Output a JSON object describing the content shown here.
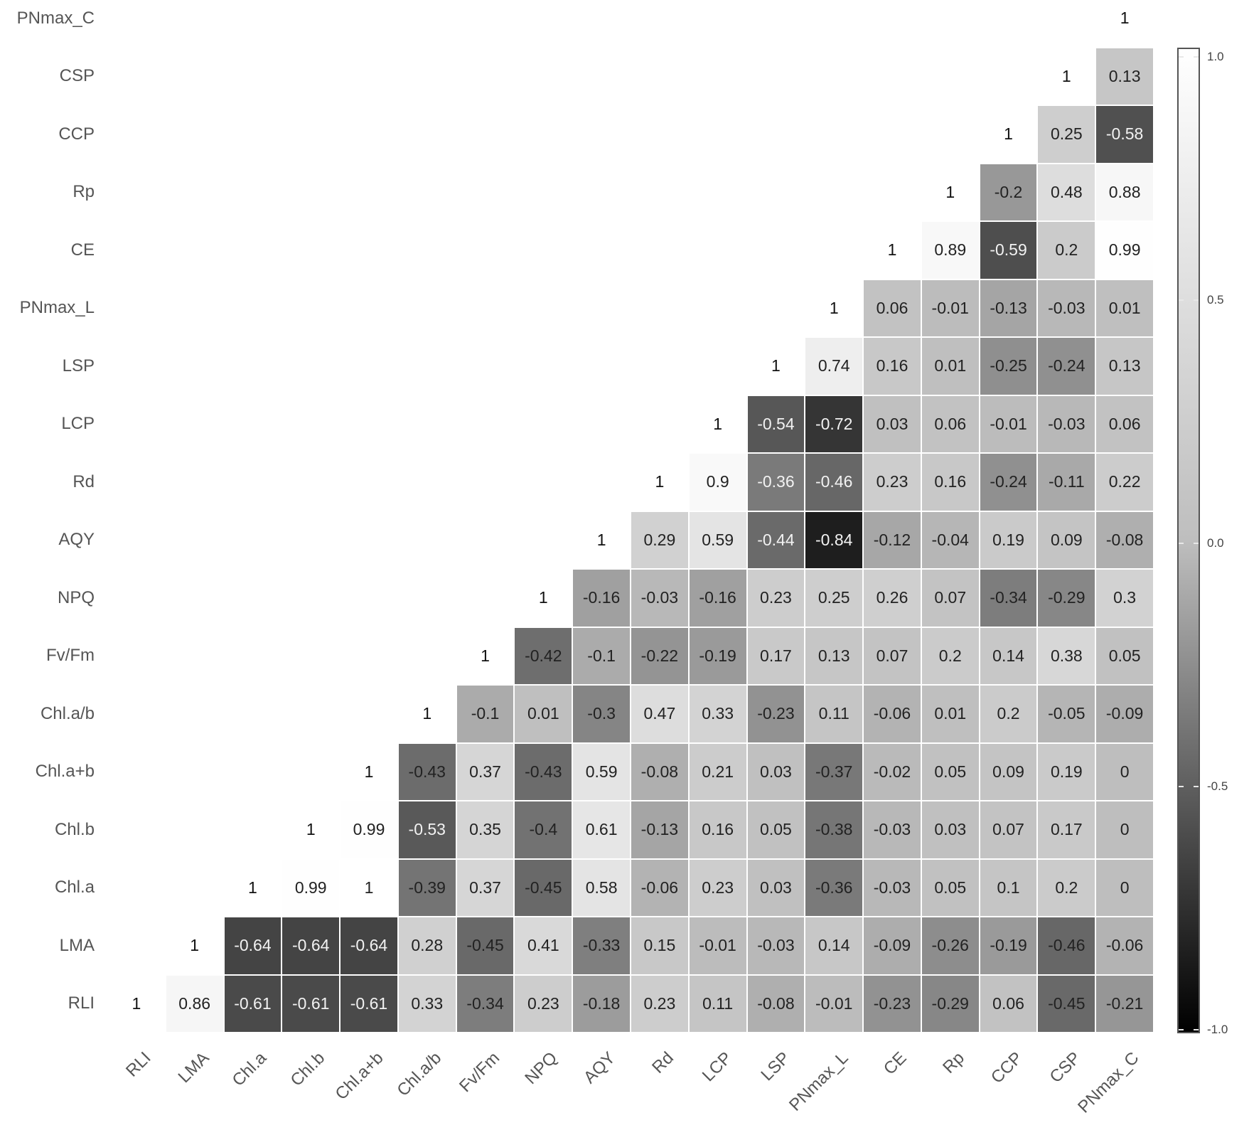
{
  "chart_data": {
    "type": "heatmap",
    "title": "",
    "xlabel": "",
    "ylabel": "",
    "variables": [
      "RLI",
      "LMA",
      "Chl.a",
      "Chl.b",
      "Chl.a+b",
      "Chl.a/b",
      "Fv/Fm",
      "NPQ",
      "AQY",
      "Rd",
      "LCP",
      "LSP",
      "PNmax_L",
      "CE",
      "Rp",
      "CCP",
      "CSP",
      "PNmax_C"
    ],
    "x_tick_labels": [
      "RLI",
      "LMA",
      "Chl.a",
      "Chl.b",
      "Chl.a+b",
      "Chl.a/b",
      "Fv/Fm",
      "NPQ",
      "AQY",
      "Rd",
      "LCP",
      "LSP",
      "PNmax_L",
      "CE",
      "Rp",
      "CCP",
      "CSP",
      "PNmax_C"
    ],
    "y_tick_labels_bottom_to_top": [
      "RLI",
      "LMA",
      "Chl.a",
      "Chl.b",
      "Chl.a+b",
      "Chl.a/b",
      "Fv/Fm",
      "NPQ",
      "AQY",
      "Rd",
      "LCP",
      "LSP",
      "PNmax_L",
      "CE",
      "Rp",
      "CCP",
      "CSP",
      "PNmax_C"
    ],
    "layout": "upper triangle (row variable on y, column variable on x, cells shown for column index >= row index)",
    "rows": [
      {
        "name": "RLI",
        "values": [
          1,
          0.86,
          -0.61,
          -0.61,
          -0.61,
          0.33,
          -0.34,
          0.23,
          -0.18,
          0.23,
          0.11,
          -0.08,
          -0.01,
          -0.23,
          -0.29,
          0.06,
          -0.45,
          -0.21
        ]
      },
      {
        "name": "LMA",
        "values": [
          null,
          1,
          -0.64,
          -0.64,
          -0.64,
          0.28,
          -0.45,
          0.41,
          -0.33,
          0.15,
          -0.01,
          -0.03,
          0.14,
          -0.09,
          -0.26,
          -0.19,
          -0.46,
          -0.06
        ]
      },
      {
        "name": "Chl.a",
        "values": [
          null,
          null,
          1,
          0.99,
          1,
          -0.39,
          0.37,
          -0.45,
          0.58,
          -0.06,
          0.23,
          0.03,
          -0.36,
          -0.03,
          0.05,
          0.1,
          0.2,
          0
        ]
      },
      {
        "name": "Chl.b",
        "values": [
          null,
          null,
          null,
          1,
          0.99,
          -0.53,
          0.35,
          -0.4,
          0.61,
          -0.13,
          0.16,
          0.05,
          -0.38,
          -0.03,
          0.03,
          0.07,
          0.17,
          0
        ]
      },
      {
        "name": "Chl.a+b",
        "values": [
          null,
          null,
          null,
          null,
          1,
          -0.43,
          0.37,
          -0.43,
          0.59,
          -0.08,
          0.21,
          0.03,
          -0.37,
          -0.02,
          0.05,
          0.09,
          0.19,
          0
        ]
      },
      {
        "name": "Chl.a/b",
        "values": [
          null,
          null,
          null,
          null,
          null,
          1,
          -0.1,
          0.01,
          -0.3,
          0.47,
          0.33,
          -0.23,
          0.11,
          -0.06,
          0.01,
          0.2,
          -0.05,
          -0.09
        ]
      },
      {
        "name": "Fv/Fm",
        "values": [
          null,
          null,
          null,
          null,
          null,
          null,
          1,
          -0.42,
          -0.1,
          -0.22,
          -0.19,
          0.17,
          0.13,
          0.07,
          0.2,
          0.14,
          0.38,
          0.05
        ]
      },
      {
        "name": "NPQ",
        "values": [
          null,
          null,
          null,
          null,
          null,
          null,
          null,
          1,
          -0.16,
          -0.03,
          -0.16,
          0.23,
          0.25,
          0.26,
          0.07,
          -0.34,
          -0.29,
          0.3
        ]
      },
      {
        "name": "AQY",
        "values": [
          null,
          null,
          null,
          null,
          null,
          null,
          null,
          null,
          1,
          0.29,
          0.59,
          -0.44,
          -0.84,
          -0.12,
          -0.04,
          0.19,
          0.09,
          -0.08
        ]
      },
      {
        "name": "Rd",
        "values": [
          null,
          null,
          null,
          null,
          null,
          null,
          null,
          null,
          null,
          1,
          0.9,
          -0.36,
          -0.46,
          0.23,
          0.16,
          -0.24,
          -0.11,
          0.22
        ]
      },
      {
        "name": "LCP",
        "values": [
          null,
          null,
          null,
          null,
          null,
          null,
          null,
          null,
          null,
          null,
          1,
          -0.54,
          -0.72,
          0.03,
          0.06,
          -0.01,
          -0.03,
          0.06
        ]
      },
      {
        "name": "LSP",
        "values": [
          null,
          null,
          null,
          null,
          null,
          null,
          null,
          null,
          null,
          null,
          null,
          1,
          0.74,
          0.16,
          0.01,
          -0.25,
          -0.24,
          0.13
        ]
      },
      {
        "name": "PNmax_L",
        "values": [
          null,
          null,
          null,
          null,
          null,
          null,
          null,
          null,
          null,
          null,
          null,
          null,
          1,
          0.06,
          -0.01,
          -0.13,
          -0.03,
          0.01
        ]
      },
      {
        "name": "CE",
        "values": [
          null,
          null,
          null,
          null,
          null,
          null,
          null,
          null,
          null,
          null,
          null,
          null,
          null,
          1,
          0.89,
          -0.59,
          0.2,
          0.99
        ]
      },
      {
        "name": "Rp",
        "values": [
          null,
          null,
          null,
          null,
          null,
          null,
          null,
          null,
          null,
          null,
          null,
          null,
          null,
          null,
          1,
          -0.2,
          0.48,
          0.88
        ]
      },
      {
        "name": "CCP",
        "values": [
          null,
          null,
          null,
          null,
          null,
          null,
          null,
          null,
          null,
          null,
          null,
          null,
          null,
          null,
          null,
          1,
          0.25,
          -0.58
        ]
      },
      {
        "name": "CSP",
        "values": [
          null,
          null,
          null,
          null,
          null,
          null,
          null,
          null,
          null,
          null,
          null,
          null,
          null,
          null,
          null,
          null,
          1,
          0.13
        ]
      },
      {
        "name": "PNmax_C",
        "values": [
          null,
          null,
          null,
          null,
          null,
          null,
          null,
          null,
          null,
          null,
          null,
          null,
          null,
          null,
          null,
          null,
          null,
          1
        ]
      }
    ],
    "light_text_cells": [
      [
        0,
        2
      ],
      [
        0,
        3
      ],
      [
        0,
        4
      ],
      [
        1,
        2
      ],
      [
        1,
        3
      ],
      [
        1,
        4
      ],
      [
        3,
        5
      ],
      [
        8,
        11
      ],
      [
        8,
        12
      ],
      [
        9,
        11
      ],
      [
        9,
        12
      ],
      [
        10,
        11
      ],
      [
        10,
        12
      ],
      [
        13,
        15
      ],
      [
        15,
        17
      ]
    ],
    "colorbar": {
      "range": [
        -1.0,
        1.0
      ],
      "ticks": [
        "1.0",
        "0.5",
        "0.0",
        "-0.5",
        "-1.0"
      ],
      "tick_values": [
        1.0,
        0.5,
        0.0,
        -0.5,
        -1.0
      ],
      "colors": {
        "low": "#000000",
        "mid": "#bebebe",
        "high": "#ffffff"
      },
      "position": "right"
    },
    "diagonal_cell_color": "#ffffff",
    "grid": false
  }
}
